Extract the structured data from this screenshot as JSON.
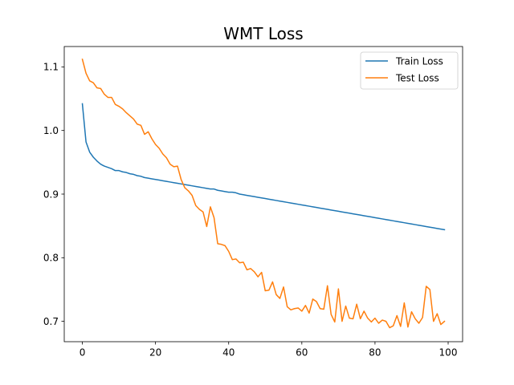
{
  "chart_data": {
    "type": "line",
    "title": "WMT Loss",
    "xlabel": "",
    "ylabel": "",
    "xlim": [
      -4.95,
      103.95
    ],
    "ylim": [
      0.668,
      1.132
    ],
    "xticks": [
      0,
      20,
      40,
      60,
      80,
      100
    ],
    "yticks": [
      0.7,
      0.8,
      0.9,
      1.0,
      1.1
    ],
    "ytick_labels": [
      "0.7",
      "0.8",
      "0.9",
      "1.0",
      "1.1"
    ],
    "grid": false,
    "legend_position": "top-right",
    "series": [
      {
        "name": "Train Loss",
        "color": "#1f77b4",
        "x": [
          0,
          1,
          2,
          3,
          4,
          5,
          6,
          7,
          8,
          9,
          10,
          11,
          12,
          13,
          14,
          15,
          16,
          17,
          18,
          19,
          20,
          21,
          22,
          23,
          24,
          25,
          26,
          27,
          28,
          29,
          30,
          31,
          32,
          33,
          34,
          35,
          36,
          37,
          38,
          39,
          40,
          41,
          42,
          43,
          44,
          45,
          46,
          47,
          48,
          49,
          50,
          51,
          52,
          53,
          54,
          55,
          56,
          57,
          58,
          59,
          60,
          61,
          62,
          63,
          64,
          65,
          66,
          67,
          68,
          69,
          70,
          71,
          72,
          73,
          74,
          75,
          76,
          77,
          78,
          79,
          80,
          81,
          82,
          83,
          84,
          85,
          86,
          87,
          88,
          89,
          90,
          91,
          92,
          93,
          94,
          95,
          96,
          97,
          98,
          99
        ],
        "values": [
          1.042,
          0.982,
          0.966,
          0.958,
          0.952,
          0.947,
          0.944,
          0.942,
          0.94,
          0.937,
          0.937,
          0.935,
          0.934,
          0.932,
          0.931,
          0.929,
          0.928,
          0.926,
          0.925,
          0.924,
          0.923,
          0.922,
          0.921,
          0.92,
          0.919,
          0.918,
          0.917,
          0.916,
          0.915,
          0.914,
          0.913,
          0.912,
          0.911,
          0.91,
          0.909,
          0.908,
          0.908,
          0.906,
          0.905,
          0.904,
          0.903,
          0.903,
          0.902,
          0.9,
          0.899,
          0.898,
          0.897,
          0.896,
          0.895,
          0.894,
          0.893,
          0.892,
          0.891,
          0.89,
          0.889,
          0.888,
          0.887,
          0.886,
          0.885,
          0.884,
          0.883,
          0.882,
          0.881,
          0.88,
          0.879,
          0.878,
          0.877,
          0.876,
          0.875,
          0.874,
          0.873,
          0.872,
          0.871,
          0.87,
          0.869,
          0.868,
          0.867,
          0.866,
          0.865,
          0.864,
          0.863,
          0.862,
          0.861,
          0.86,
          0.859,
          0.858,
          0.857,
          0.856,
          0.855,
          0.854,
          0.853,
          0.852,
          0.851,
          0.85,
          0.849,
          0.848,
          0.847,
          0.846,
          0.845,
          0.844
        ]
      },
      {
        "name": "Test Loss",
        "color": "#ff7f0e",
        "x": [
          0,
          1,
          2,
          3,
          4,
          5,
          6,
          7,
          8,
          9,
          10,
          11,
          12,
          13,
          14,
          15,
          16,
          17,
          18,
          19,
          20,
          21,
          22,
          23,
          24,
          25,
          26,
          27,
          28,
          29,
          30,
          31,
          32,
          33,
          34,
          35,
          36,
          37,
          38,
          39,
          40,
          41,
          42,
          43,
          44,
          45,
          46,
          47,
          48,
          49,
          50,
          51,
          52,
          53,
          54,
          55,
          56,
          57,
          58,
          59,
          60,
          61,
          62,
          63,
          64,
          65,
          66,
          67,
          68,
          69,
          70,
          71,
          72,
          73,
          74,
          75,
          76,
          77,
          78,
          79,
          80,
          81,
          82,
          83,
          84,
          85,
          86,
          87,
          88,
          89,
          90,
          91,
          92,
          93,
          94,
          95,
          96,
          97,
          98,
          99
        ],
        "values": [
          1.112,
          1.09,
          1.078,
          1.075,
          1.067,
          1.066,
          1.057,
          1.052,
          1.052,
          1.041,
          1.038,
          1.034,
          1.028,
          1.023,
          1.018,
          1.01,
          1.008,
          0.994,
          0.998,
          0.987,
          0.978,
          0.972,
          0.963,
          0.957,
          0.947,
          0.943,
          0.944,
          0.923,
          0.91,
          0.905,
          0.898,
          0.882,
          0.876,
          0.872,
          0.849,
          0.88,
          0.863,
          0.822,
          0.821,
          0.819,
          0.81,
          0.797,
          0.798,
          0.792,
          0.793,
          0.781,
          0.783,
          0.778,
          0.77,
          0.777,
          0.748,
          0.749,
          0.762,
          0.742,
          0.736,
          0.754,
          0.723,
          0.718,
          0.72,
          0.721,
          0.716,
          0.725,
          0.713,
          0.735,
          0.731,
          0.72,
          0.719,
          0.756,
          0.711,
          0.699,
          0.751,
          0.7,
          0.724,
          0.705,
          0.704,
          0.727,
          0.704,
          0.716,
          0.705,
          0.699,
          0.705,
          0.697,
          0.702,
          0.7,
          0.69,
          0.693,
          0.709,
          0.692,
          0.729,
          0.691,
          0.715,
          0.704,
          0.697,
          0.706,
          0.755,
          0.75,
          0.7,
          0.712,
          0.695,
          0.7
        ]
      }
    ]
  }
}
